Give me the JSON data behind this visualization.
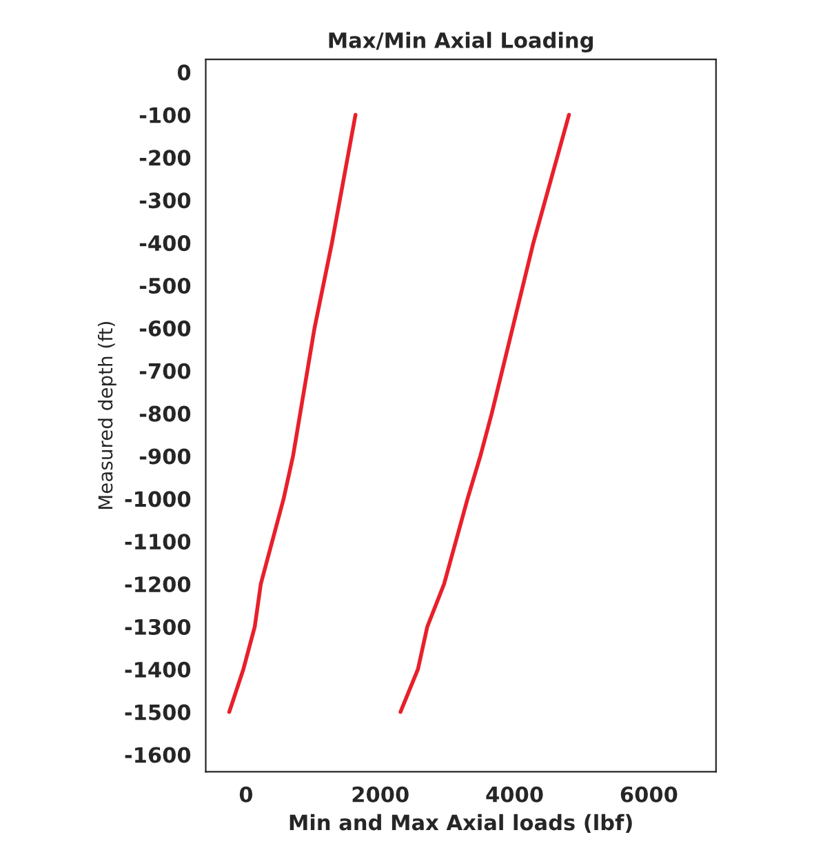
{
  "chart_data": {
    "type": "line",
    "title": "Max/Min Axial Loading",
    "xlabel": "Min and Max Axial loads (lbf)",
    "ylabel": "Measured depth (ft)",
    "series": [
      {
        "color": "#e8202a",
        "x": [
          -250,
          -40,
          130,
          220,
          560,
          700,
          1020,
          1280,
          1630
        ],
        "values": [
          -1500,
          -1400,
          -1300,
          -1200,
          -1000,
          -900,
          -600,
          -400,
          -100
        ]
      },
      {
        "color": "#e8202a",
        "x": [
          2300,
          2560,
          2700,
          2950,
          3300,
          3490,
          3660,
          3970,
          4280,
          4810
        ],
        "values": [
          -1500,
          -1400,
          -1300,
          -1200,
          -1000,
          -900,
          -800,
          -600,
          -400,
          -100
        ]
      }
    ],
    "xlim": [
      -600,
      7000
    ],
    "ylim": [
      -1640,
      30
    ],
    "xticks": [
      0,
      2000,
      4000,
      6000
    ],
    "yticks": [
      0,
      {
        "value": -100,
        "label": "-100"
      },
      {
        "value": -200,
        "label": "-200"
      },
      {
        "value": -300,
        "label": "-300"
      },
      {
        "value": -400,
        "label": "-400"
      },
      {
        "value": -500,
        "label": "-500"
      },
      {
        "value": -600,
        "label": "-600"
      },
      {
        "value": -700,
        "label": "-700"
      },
      {
        "value": -800,
        "label": "-800"
      },
      {
        "value": -900,
        "label": "-900"
      },
      {
        "value": -1000,
        "label": "-1000"
      },
      {
        "value": -1100,
        "label": "-1100"
      },
      {
        "value": -1200,
        "label": "-1200"
      },
      {
        "value": -1300,
        "label": "-1300"
      },
      {
        "value": -1400,
        "label": "-1400"
      },
      {
        "value": -1500,
        "label": "-1500"
      },
      {
        "value": -1600,
        "label": "-1600"
      }
    ],
    "grid": false
  }
}
